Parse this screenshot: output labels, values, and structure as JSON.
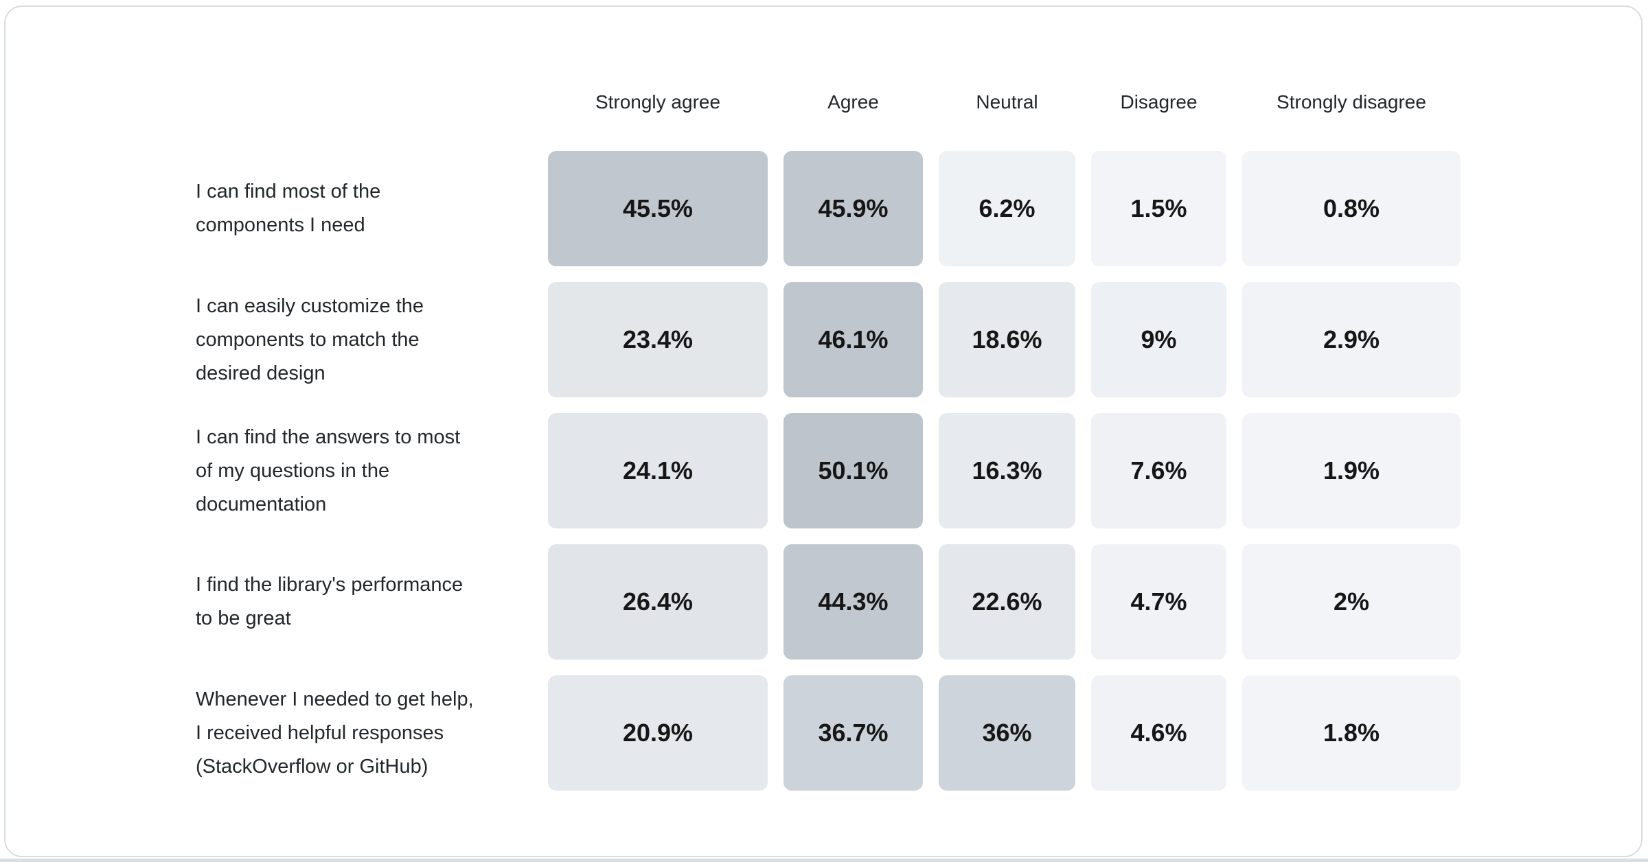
{
  "page": {
    "background": "#ffffff",
    "card_background": "#ffffff",
    "card_border_color": "#d7dce1",
    "bottom_strip_color": "#d9dee3",
    "header_text_color": "#21272a",
    "label_text_color": "#21272a",
    "value_text_color": "#161616"
  },
  "chart_data": {
    "type": "heatmap",
    "title": "",
    "legend": "none",
    "grid": "off",
    "columns": [
      "Strongly agree",
      "Agree",
      "Neutral",
      "Disagree",
      "Strongly disagree"
    ],
    "color_scale": {
      "min_value": 0,
      "max_value": 50.1,
      "min_color": "#f2f4f7",
      "max_color": "#bdc4cc"
    },
    "rows": [
      {
        "label": "I can find most of the components I need",
        "label_lines": [
          "I can find most of the",
          "components I need"
        ],
        "values": [
          45.5,
          45.9,
          6.2,
          1.5,
          0.8
        ],
        "display": [
          "45.5%",
          "45.9%",
          "6.2%",
          "1.5%",
          "0.8%"
        ],
        "colors": [
          "#c1c7cf",
          "#c1c7ce",
          "#eff2f5",
          "#f2f4f7",
          "#f2f4f7"
        ]
      },
      {
        "label": "I can easily customize the components to match the desired design",
        "label_lines": [
          "I can easily customize the",
          "components to match the",
          "desired design"
        ],
        "values": [
          23.4,
          46.1,
          18.6,
          9,
          2.9
        ],
        "display": [
          "23.4%",
          "46.1%",
          "18.6%",
          "9%",
          "2.9%"
        ],
        "colors": [
          "#e4e7ea",
          "#c0c6ce",
          "#e6e9ed",
          "#edf0f4",
          "#f1f3f6"
        ]
      },
      {
        "label": "I can find the answers to most of my questions in the documentation",
        "label_lines": [
          "I can find the answers to most",
          "of my questions in the",
          "documentation"
        ],
        "values": [
          24.1,
          50.1,
          16.3,
          7.6,
          1.9
        ],
        "display": [
          "24.1%",
          "50.1%",
          "16.3%",
          "7.6%",
          "1.9%"
        ],
        "colors": [
          "#e3e6ea",
          "#bdc4cc",
          "#e7eaee",
          "#eff1f5",
          "#f2f4f7"
        ]
      },
      {
        "label": "I find the library's performance to be great",
        "label_lines": [
          "I find the library's performance",
          "to be great"
        ],
        "values": [
          26.4,
          44.3,
          22.6,
          4.7,
          2
        ],
        "display": [
          "26.4%",
          "44.3%",
          "22.6%",
          "4.7%",
          "2%"
        ],
        "colors": [
          "#e1e5e9",
          "#c2c8d0",
          "#e4e7eb",
          "#f0f2f6",
          "#f2f4f7"
        ]
      },
      {
        "label": "Whenever I needed to get help, I received helpful responses (StackOverflow or GitHub)",
        "label_lines": [
          "Whenever I needed to get help,",
          "I received helpful responses",
          "(StackOverflow or GitHub)"
        ],
        "values": [
          20.9,
          36.7,
          36,
          4.6,
          1.8
        ],
        "display": [
          "20.9%",
          "36.7%",
          "36%",
          "4.6%",
          "1.8%"
        ],
        "colors": [
          "#e5e8ec",
          "#cdd3da",
          "#ced4db",
          "#f0f2f6",
          "#f2f4f7"
        ]
      }
    ]
  }
}
